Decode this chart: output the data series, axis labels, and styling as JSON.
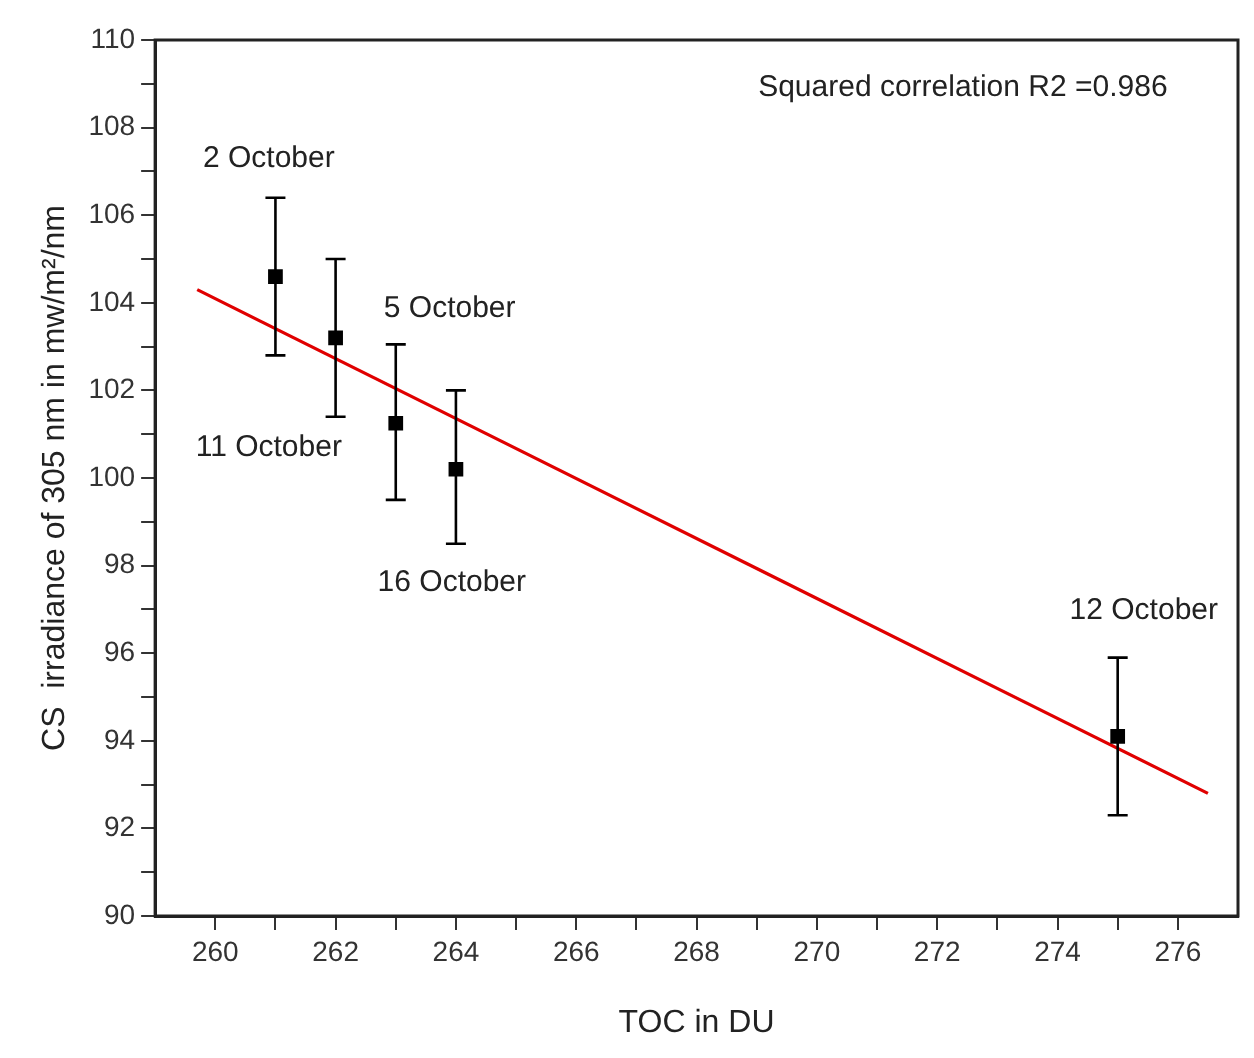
{
  "chart_data": {
    "type": "scatter",
    "xlabel": "TOC in DU",
    "ylabel": "CS  irradiance of 305 nm in mw/m²/nm",
    "xlim": [
      259,
      277
    ],
    "ylim": [
      90,
      110
    ],
    "xticks": [
      260,
      {
        "value": 261,
        "label": null
      },
      262,
      {
        "value": 263,
        "label": null
      },
      264,
      {
        "value": 265,
        "label": null
      },
      266,
      {
        "value": 267,
        "label": null
      },
      268,
      {
        "value": 269,
        "label": null
      },
      270,
      {
        "value": 271,
        "label": null
      },
      272,
      {
        "value": 273,
        "label": null
      },
      274,
      {
        "value": 275,
        "label": null
      },
      276
    ],
    "yticks": [
      90,
      {
        "value": 91,
        "label": null
      },
      92,
      {
        "value": 93,
        "label": null
      },
      94,
      {
        "value": 95,
        "label": null
      },
      96,
      {
        "value": 97,
        "label": null
      },
      98,
      {
        "value": 99,
        "label": null
      },
      100,
      {
        "value": 101,
        "label": null
      },
      102,
      {
        "value": 103,
        "label": null
      },
      104,
      {
        "value": 105,
        "label": null
      },
      106,
      {
        "value": 107,
        "label": null
      },
      108,
      {
        "value": 109,
        "label": null
      },
      110
    ],
    "grid": false,
    "legend": false,
    "series": [
      {
        "type": "scatter",
        "color": "#000000",
        "marker": "square",
        "x": [
          261,
          262,
          263,
          264,
          275
        ],
        "values": [
          104.6,
          103.2,
          101.25,
          100.2,
          94.1
        ],
        "errors": [
          [
            102.8,
            106.4
          ],
          [
            101.4,
            105.0
          ],
          [
            99.5,
            103.05
          ],
          [
            98.5,
            102.0
          ],
          [
            92.3,
            95.9
          ]
        ]
      },
      {
        "type": "line",
        "color": "#e00000",
        "marker": "none",
        "line_style": "solid",
        "x": [
          259.7,
          276.5
        ],
        "values": [
          104.3,
          92.8
        ]
      }
    ],
    "annotations": [
      "2 October",
      "11 October",
      "5 October",
      "16 October",
      "12 October",
      "Squared correlation R2 =0.986"
    ]
  }
}
